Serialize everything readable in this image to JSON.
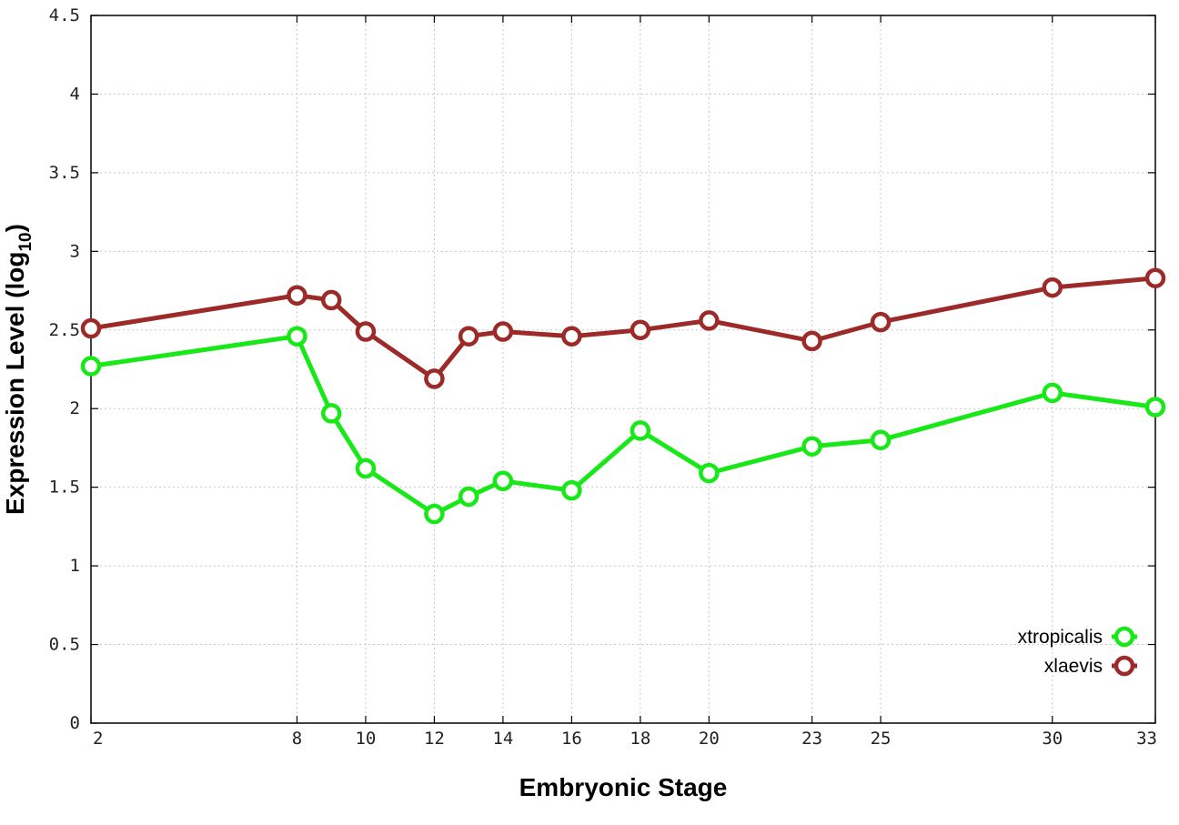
{
  "chart_data": {
    "type": "line",
    "title": "",
    "xlabel": "Embryonic Stage",
    "ylabel_main": "Expression Level (log",
    "ylabel_sub": "10",
    "ylabel_close": ")",
    "x": [
      2,
      8,
      9,
      10,
      12,
      13,
      14,
      16,
      18,
      20,
      23,
      25,
      30,
      33
    ],
    "x_ticks": [
      2,
      8,
      10,
      12,
      14,
      16,
      18,
      20,
      23,
      25,
      30,
      33
    ],
    "x_tick_labels": [
      "2",
      "8",
      "10",
      "12",
      "14",
      "16",
      "18",
      "20",
      "23",
      "25",
      "30",
      "33"
    ],
    "xlim": [
      2,
      33
    ],
    "ylim": [
      0,
      4.5
    ],
    "y_ticks": [
      0,
      0.5,
      1,
      1.5,
      2,
      2.5,
      3,
      3.5,
      4,
      4.5
    ],
    "y_tick_labels": [
      "0",
      "0.5",
      "1",
      "1.5",
      "2",
      "2.5",
      "3",
      "3.5",
      "4",
      "4.5"
    ],
    "grid": true,
    "legend_position": "bottom-right",
    "series": [
      {
        "name": "xtropicalis",
        "color": "#18e818",
        "values": [
          2.27,
          2.46,
          1.97,
          1.62,
          1.33,
          1.44,
          1.54,
          1.48,
          1.86,
          1.59,
          1.76,
          1.8,
          2.1,
          2.01
        ]
      },
      {
        "name": "xlaevis",
        "color": "#9b2a28",
        "values": [
          2.51,
          2.72,
          2.69,
          2.49,
          2.19,
          2.46,
          2.49,
          2.46,
          2.5,
          2.56,
          2.43,
          2.55,
          2.77,
          2.83
        ]
      }
    ]
  }
}
